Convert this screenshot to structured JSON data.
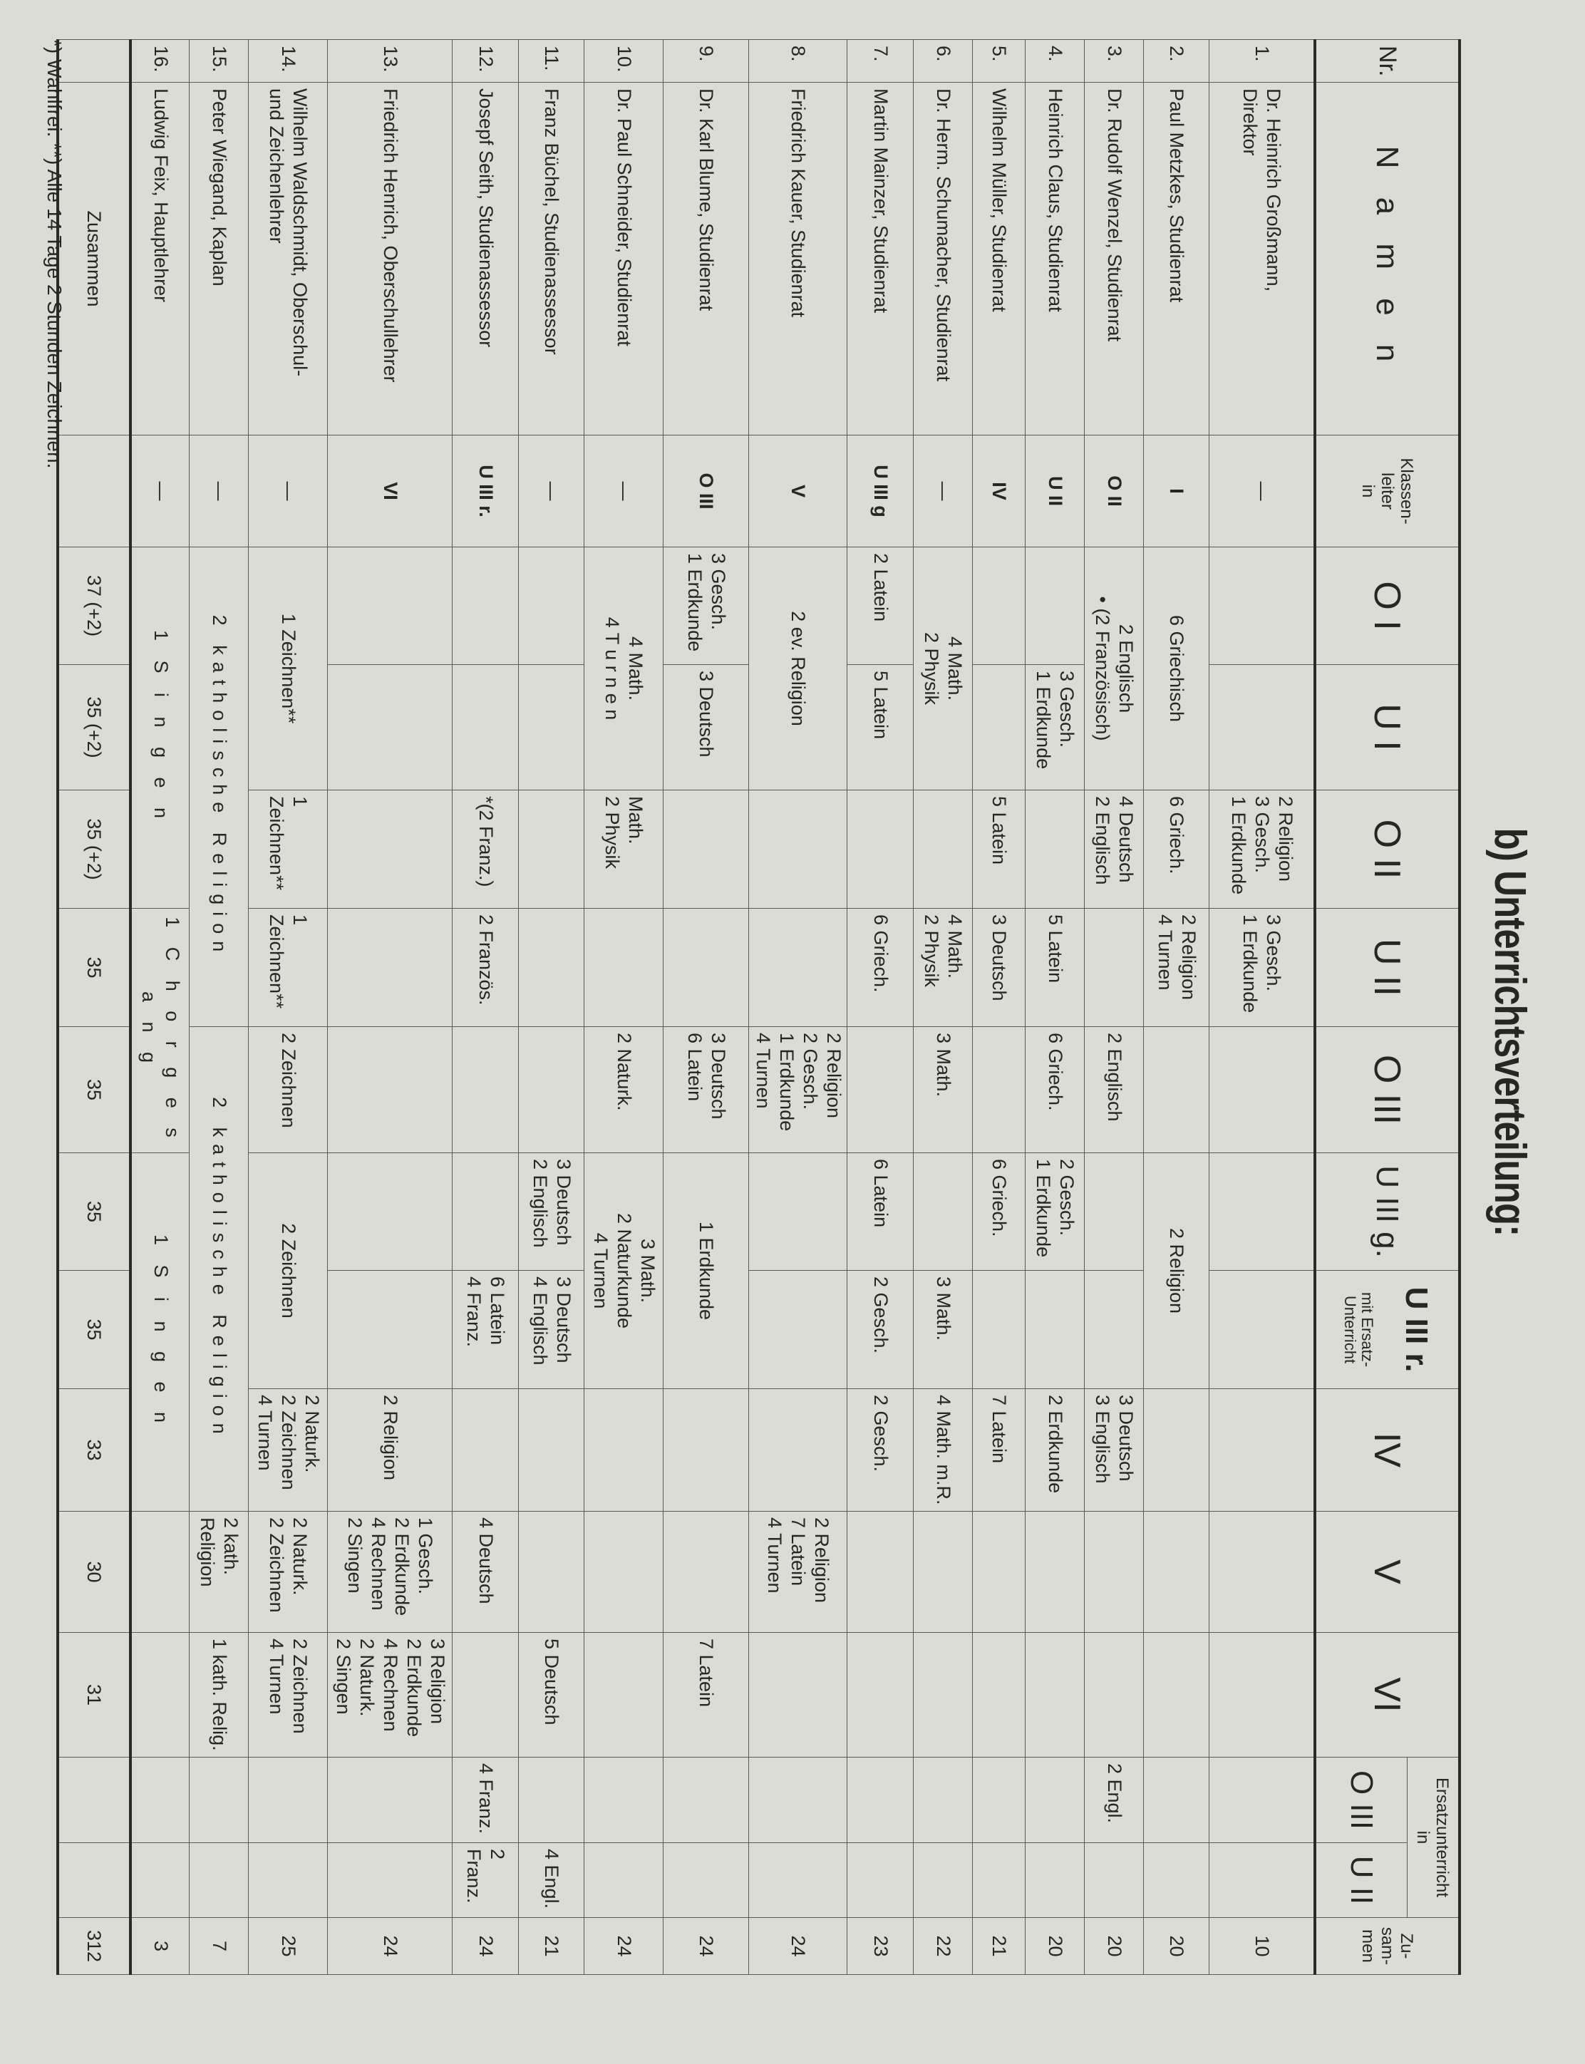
{
  "title": "b) Unterrichtsverteilung:",
  "header": {
    "nr": "Nr.",
    "namen": "N a m e n",
    "klassenleiter": "Klassen-\nleiter\nin",
    "classes": [
      "O I",
      "U I",
      "O II",
      "U II",
      "O III",
      "U III g."
    ],
    "uiiir": "U III r.",
    "uiiir_sub": "mit Ersatz-\nUnterricht",
    "classes2": [
      "IV",
      "V",
      "VI"
    ],
    "ersatz": "Ersatzunterricht\nin",
    "ersatz_classes": [
      "O III",
      "U II"
    ],
    "zusammen": "Zu-\nsam-\nmen"
  },
  "rows": [
    {
      "nr": "1.",
      "name": "Dr. Heinrich Großmann,\nDirektor",
      "cells": [
        {
          "t": "—",
          "c": "center"
        },
        {
          "t": ""
        },
        {
          "t": ""
        },
        {
          "t": "2 Religion\n3 Gesch.\n1 Erdkunde"
        },
        {
          "t": "3 Gesch.\n1 Erdkunde"
        },
        {
          "t": ""
        },
        {
          "t": ""
        },
        {
          "t": ""
        },
        {
          "t": ""
        },
        {
          "t": ""
        },
        {
          "t": ""
        },
        {
          "t": ""
        },
        {
          "t": ""
        },
        {
          "t": "10",
          "c": "num"
        }
      ]
    },
    {
      "nr": "2.",
      "name": "Paul Metzkes, Studienrat",
      "cells": [
        {
          "t": "I",
          "c": "center bold"
        },
        {
          "t": "6 Griechisch",
          "s": 2,
          "c": "center"
        },
        {
          "t": "6 Griech."
        },
        {
          "t": "2 Religion\n4 Turnen"
        },
        {
          "t": ""
        },
        {
          "t": "2 Religion",
          "s": 2,
          "c": "center"
        },
        {
          "t": ""
        },
        {
          "t": ""
        },
        {
          "t": ""
        },
        {
          "t": ""
        },
        {
          "t": ""
        },
        {
          "t": "20",
          "c": "num"
        }
      ]
    },
    {
      "nr": "3.",
      "name": "Dr. Rudolf Wenzel, Studienrat",
      "cells": [
        {
          "t": "O II",
          "c": "center bold"
        },
        {
          "t": "2 Englisch\n• (2 Französisch)",
          "s": 2,
          "c": "center"
        },
        {
          "t": "4 Deutsch\n2 Englisch"
        },
        {
          "t": ""
        },
        {
          "t": "2 Englisch"
        },
        {
          "t": ""
        },
        {
          "t": ""
        },
        {
          "t": "3 Deutsch\n3 Englisch"
        },
        {
          "t": ""
        },
        {
          "t": ""
        },
        {
          "t": "2 Engl."
        },
        {
          "t": ""
        },
        {
          "t": "20",
          "c": "num"
        }
      ]
    },
    {
      "nr": "4.",
      "name": "Heinrich Claus, Studienrat",
      "cells": [
        {
          "t": "U II",
          "c": "center bold"
        },
        {
          "t": ""
        },
        {
          "t": "3 Gesch.\n1 Erdkunde"
        },
        {
          "t": ""
        },
        {
          "t": "5 Latein"
        },
        {
          "t": "6 Griech."
        },
        {
          "t": "2 Gesch.\n1 Erdkunde"
        },
        {
          "t": ""
        },
        {
          "t": "2 Erdkunde"
        },
        {
          "t": ""
        },
        {
          "t": ""
        },
        {
          "t": ""
        },
        {
          "t": ""
        },
        {
          "t": "20",
          "c": "num"
        }
      ]
    },
    {
      "nr": "5.",
      "name": "Wilhelm Müller, Studienrat",
      "cells": [
        {
          "t": "IV",
          "c": "center bold"
        },
        {
          "t": ""
        },
        {
          "t": ""
        },
        {
          "t": "5 Latein"
        },
        {
          "t": "3 Deutsch"
        },
        {
          "t": ""
        },
        {
          "t": "6 Griech."
        },
        {
          "t": ""
        },
        {
          "t": "7 Latein"
        },
        {
          "t": ""
        },
        {
          "t": ""
        },
        {
          "t": ""
        },
        {
          "t": ""
        },
        {
          "t": "21",
          "c": "num"
        }
      ]
    },
    {
      "nr": "6.",
      "name": "Dr. Herm. Schumacher, Studienrat",
      "cells": [
        {
          "t": "—",
          "c": "center"
        },
        {
          "t": "4 Math.\n2 Physik",
          "s": 2,
          "c": "center"
        },
        {
          "t": ""
        },
        {
          "t": "4 Math.\n2 Physik"
        },
        {
          "t": "3 Math."
        },
        {
          "t": ""
        },
        {
          "t": "3 Math."
        },
        {
          "t": "4 Math. m.R."
        },
        {
          "t": ""
        },
        {
          "t": ""
        },
        {
          "t": ""
        },
        {
          "t": ""
        },
        {
          "t": "22",
          "c": "num"
        }
      ]
    },
    {
      "nr": "7.",
      "name": "Martin Mainzer, Studienrat",
      "cells": [
        {
          "t": "U III g",
          "c": "center bold"
        },
        {
          "t": "2 Latein"
        },
        {
          "t": "5 Latein"
        },
        {
          "t": ""
        },
        {
          "t": "6 Griech."
        },
        {
          "t": ""
        },
        {
          "t": "6 Latein"
        },
        {
          "t": "2 Gesch."
        },
        {
          "t": "2 Gesch."
        },
        {
          "t": ""
        },
        {
          "t": ""
        },
        {
          "t": ""
        },
        {
          "t": ""
        },
        {
          "t": "23",
          "c": "num"
        }
      ]
    },
    {
      "nr": "8.",
      "name": "Friedrich Kauer, Studienrat",
      "cells": [
        {
          "t": "V",
          "c": "center bold"
        },
        {
          "t": "2 ev. Religion",
          "s": 2,
          "c": "center"
        },
        {
          "t": ""
        },
        {
          "t": ""
        },
        {
          "t": "2 Religion\n2 Gesch.\n1 Erdkunde\n4 Turnen"
        },
        {
          "t": ""
        },
        {
          "t": ""
        },
        {
          "t": ""
        },
        {
          "t": "2 Religion\n7 Latein\n4 Turnen"
        },
        {
          "t": ""
        },
        {
          "t": ""
        },
        {
          "t": ""
        },
        {
          "t": "24",
          "c": "num"
        }
      ]
    },
    {
      "nr": "9.",
      "name": "Dr. Karl Blume, Studienrat",
      "cells": [
        {
          "t": "O III",
          "c": "center bold"
        },
        {
          "t": "3 Gesch.\n1 Erdkunde"
        },
        {
          "t": "3 Deutsch"
        },
        {
          "t": ""
        },
        {
          "t": ""
        },
        {
          "t": "3 Deutsch\n6 Latein"
        },
        {
          "t": "1 Erdkunde",
          "s": 2,
          "c": "center"
        },
        {
          "t": ""
        },
        {
          "t": ""
        },
        {
          "t": "7 Latein"
        },
        {
          "t": ""
        },
        {
          "t": ""
        },
        {
          "t": "24",
          "c": "num"
        }
      ]
    },
    {
      "nr": "10.",
      "name": "Dr. Paul Schneider, Studienrat",
      "cells": [
        {
          "t": "—",
          "c": "center"
        },
        {
          "t": "4 Math.\n4 T u r n e n",
          "s": 2,
          "c": "center"
        },
        {
          "t": "Math.\n2 Physik"
        },
        {
          "t": ""
        },
        {
          "t": "2 Naturk."
        },
        {
          "t": "3 Math.\n2 Naturkunde\n4 Turnen",
          "s": 2,
          "c": "center"
        },
        {
          "t": ""
        },
        {
          "t": ""
        },
        {
          "t": ""
        },
        {
          "t": ""
        },
        {
          "t": ""
        },
        {
          "t": "24",
          "c": "num"
        }
      ]
    },
    {
      "nr": "11.",
      "name": "Franz Büchel, Studienassessor",
      "cells": [
        {
          "t": "—",
          "c": "center"
        },
        {
          "t": ""
        },
        {
          "t": ""
        },
        {
          "t": ""
        },
        {
          "t": ""
        },
        {
          "t": ""
        },
        {
          "t": "3 Deutsch\n2 Englisch"
        },
        {
          "t": "3 Deutsch\n4 Englisch"
        },
        {
          "t": ""
        },
        {
          "t": ""
        },
        {
          "t": "5 Deutsch"
        },
        {
          "t": ""
        },
        {
          "t": "4 Engl."
        },
        {
          "t": "21",
          "c": "num"
        }
      ]
    },
    {
      "nr": "12.",
      "name": "Josepf Seith, Studienassessor",
      "cells": [
        {
          "t": "U III r.",
          "c": "center bold"
        },
        {
          "t": ""
        },
        {
          "t": ""
        },
        {
          "t": "*(2 Franz.)"
        },
        {
          "t": "2 Französ."
        },
        {
          "t": ""
        },
        {
          "t": ""
        },
        {
          "t": "6 Latein\n4 Franz."
        },
        {
          "t": ""
        },
        {
          "t": "4 Deutsch"
        },
        {
          "t": ""
        },
        {
          "t": "4 Franz."
        },
        {
          "t": "2 Franz."
        },
        {
          "t": "24",
          "c": "num"
        }
      ]
    },
    {
      "nr": "13.",
      "name": "Friedrich Henrich, Oberschullehrer",
      "cells": [
        {
          "t": "VI",
          "c": "center bold"
        },
        {
          "t": ""
        },
        {
          "t": ""
        },
        {
          "t": ""
        },
        {
          "t": ""
        },
        {
          "t": ""
        },
        {
          "t": ""
        },
        {
          "t": ""
        },
        {
          "t": "2 Religion"
        },
        {
          "t": "1 Gesch.\n2 Erdkunde\n4 Rechnen\n2 Singen"
        },
        {
          "t": "3 Religion\n2 Erdkunde\n4 Rechnen\n2 Naturk.\n2 Singen"
        },
        {
          "t": ""
        },
        {
          "t": ""
        },
        {
          "t": "24",
          "c": "num"
        }
      ]
    },
    {
      "nr": "14.",
      "name": "Wilhelm Waldschmidt, Oberschul-\nund Zeichenlehrer",
      "cells": [
        {
          "t": "—",
          "c": "center"
        },
        {
          "t": "1 Zeichnen**",
          "s": 2,
          "c": "center"
        },
        {
          "t": "1 Zeichnen**"
        },
        {
          "t": "1 Zeichnen**"
        },
        {
          "t": "2 Zeichnen"
        },
        {
          "t": "2 Zeichnen",
          "s": 2,
          "c": "center"
        },
        {
          "t": "2 Naturk.\n2 Zeichnen\n4 Turnen"
        },
        {
          "t": "2 Naturk.\n2 Zeichnen"
        },
        {
          "t": "2 Zeichnen\n4 Turnen"
        },
        {
          "t": ""
        },
        {
          "t": ""
        },
        {
          "t": "25",
          "c": "num"
        }
      ]
    },
    {
      "nr": "15.",
      "name": "Peter Wiegand, Kaplan",
      "cells": [
        {
          "t": "—",
          "c": "center"
        },
        {
          "t": "2 katholische Religion",
          "s": 4,
          "c": "spaced"
        },
        {
          "t": "2 katholische Religion",
          "s": 4,
          "c": "spaced"
        },
        {
          "t": "2 kath. Religion"
        },
        {
          "t": "1 kath. Relig."
        },
        {
          "t": ""
        },
        {
          "t": ""
        },
        {
          "t": "7",
          "c": "num"
        }
      ]
    },
    {
      "nr": "16.",
      "name": "Ludwig Feix, Hauptlehrer",
      "cells": [
        {
          "t": "—",
          "c": "center"
        },
        {
          "t": "1 S i n g e n",
          "s": 3,
          "c": "spaced"
        },
        {
          "t": "1 C h o r g e s a n g",
          "s": 2,
          "c": "spaced"
        },
        {
          "t": "1 S i n g e n",
          "s": 3,
          "c": "spaced"
        },
        {
          "t": ""
        },
        {
          "t": ""
        },
        {
          "t": ""
        },
        {
          "t": ""
        },
        {
          "t": "3",
          "c": "num"
        }
      ]
    }
  ],
  "total": {
    "label": "Zusammen",
    "values": [
      "37 (+2)",
      "35 (+2)",
      "35 (+2)",
      "35",
      "35",
      "35",
      "35",
      "33",
      "30",
      "31",
      "",
      "",
      "312"
    ]
  },
  "footnote": "*) Wahlfrei.   **) Alle 14 Tage 2 Stunden Zeichnen."
}
